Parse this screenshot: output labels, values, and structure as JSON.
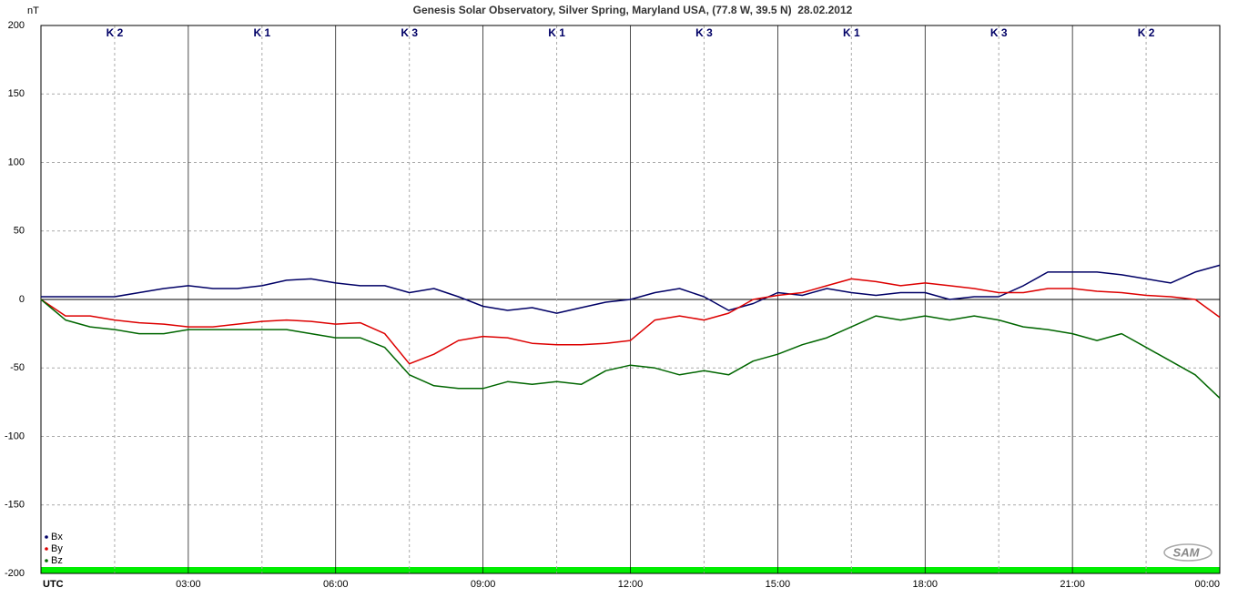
{
  "chart_data": {
    "type": "line",
    "title": "Genesis Solar Observatory, Silver Spring, Maryland USA, (77.8 W, 39.5 N)  28.02.2012",
    "y_label": "nT",
    "logo": "SAM",
    "k_indices": [
      "K 2",
      "K 1",
      "K 3",
      "K 1",
      "K 3",
      "K 1",
      "K 3",
      "K 2"
    ],
    "x": [
      0,
      0.5,
      1,
      1.5,
      2,
      2.5,
      3,
      3.5,
      4,
      4.5,
      5,
      5.5,
      6,
      6.5,
      7,
      7.5,
      8,
      8.5,
      9,
      9.5,
      10,
      10.5,
      11,
      11.5,
      12,
      12.5,
      13,
      13.5,
      14,
      14.5,
      15,
      15.5,
      16,
      16.5,
      17,
      17.5,
      18,
      18.5,
      19,
      19.5,
      20,
      20.5,
      21,
      21.5,
      22,
      22.5,
      23,
      23.5,
      24
    ],
    "series": [
      {
        "name": "Bx",
        "color": "#000066",
        "values": [
          2,
          2,
          2,
          2,
          5,
          8,
          10,
          8,
          8,
          10,
          14,
          15,
          12,
          10,
          10,
          5,
          8,
          2,
          -5,
          -8,
          -6,
          -10,
          -6,
          -2,
          0,
          5,
          8,
          2,
          -8,
          -3,
          5,
          3,
          8,
          5,
          3,
          5,
          5,
          0,
          2,
          2,
          10,
          20,
          20,
          20,
          18,
          15,
          12,
          20,
          25
        ]
      },
      {
        "name": "By",
        "color": "#dd0000",
        "values": [
          0,
          -12,
          -12,
          -15,
          -17,
          -18,
          -20,
          -20,
          -18,
          -16,
          -15,
          -16,
          -18,
          -17,
          -25,
          -47,
          -40,
          -30,
          -27,
          -28,
          -32,
          -33,
          -33,
          -32,
          -30,
          -15,
          -12,
          -15,
          -10,
          0,
          3,
          5,
          10,
          15,
          13,
          10,
          12,
          10,
          8,
          5,
          5,
          8,
          8,
          6,
          5,
          3,
          2,
          0,
          -13
        ]
      },
      {
        "name": "Bz",
        "color": "#006600",
        "values": [
          0,
          -15,
          -20,
          -22,
          -25,
          -25,
          -22,
          -22,
          -22,
          -22,
          -22,
          -25,
          -28,
          -28,
          -35,
          -55,
          -63,
          -65,
          -65,
          -60,
          -62,
          -60,
          -62,
          -52,
          -48,
          -50,
          -55,
          -52,
          -55,
          -45,
          -40,
          -33,
          -28,
          -20,
          -12,
          -15,
          -12,
          -15,
          -12,
          -15,
          -20,
          -22,
          -25,
          -30,
          -25,
          -35,
          -45,
          -55,
          -72
        ]
      }
    ],
    "xlim": [
      0,
      24
    ],
    "xticks": [
      {
        "value": 0,
        "label": "UTC"
      },
      {
        "value": 3,
        "label": "03:00"
      },
      {
        "value": 6,
        "label": "06:00"
      },
      {
        "value": 9,
        "label": "09:00"
      },
      {
        "value": 12,
        "label": "12:00"
      },
      {
        "value": 15,
        "label": "15:00"
      },
      {
        "value": 18,
        "label": "18:00"
      },
      {
        "value": 21,
        "label": "21:00"
      },
      {
        "value": 24,
        "label": "00:00"
      }
    ],
    "x_minor_ticks": [
      1.5,
      4.5,
      7.5,
      10.5,
      13.5,
      16.5,
      19.5,
      22.5
    ],
    "ylim": [
      -200,
      200
    ],
    "yticks": [
      -200,
      -150,
      -100,
      -50,
      0,
      50,
      100,
      150,
      200
    ],
    "grid": true,
    "legend": "lower left"
  }
}
